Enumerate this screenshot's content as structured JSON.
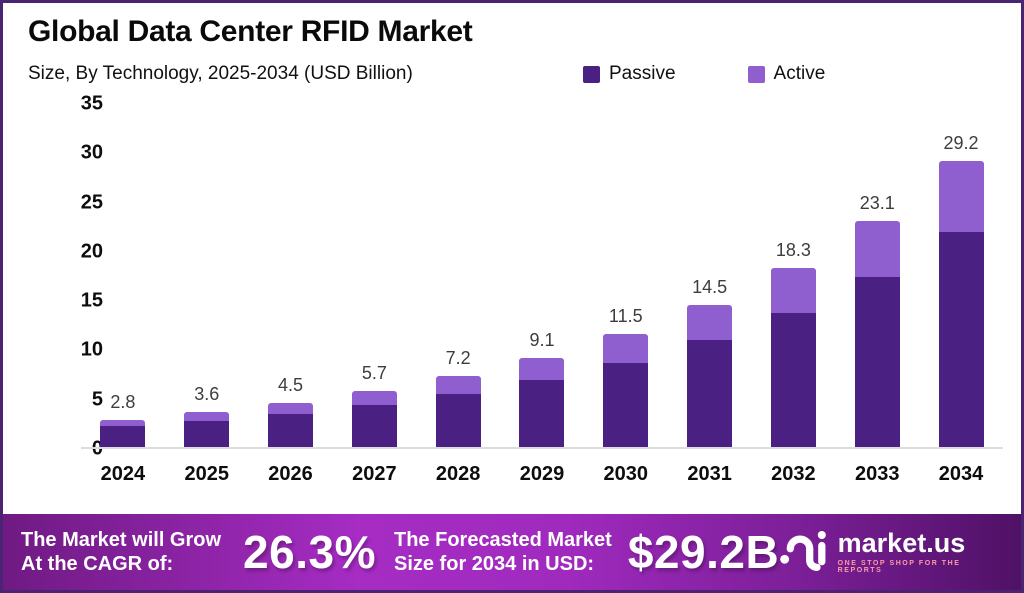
{
  "title": "Global Data Center RFID Market",
  "subtitle": "Size, By Technology, 2025-2034 (USD Billion)",
  "colors": {
    "passive": "#4a2083",
    "active": "#8f5fd0",
    "border": "#4b2373",
    "banner_text": "#ffffff"
  },
  "chart_data": {
    "type": "bar",
    "stacked": true,
    "title": "Global Data Center RFID Market",
    "subtitle": "Size, By Technology, 2025-2034 (USD Billion)",
    "unit": "USD Billion",
    "categories": [
      "2024",
      "2025",
      "2026",
      "2027",
      "2028",
      "2029",
      "2030",
      "2031",
      "2032",
      "2033",
      "2034"
    ],
    "series": [
      {
        "name": "Passive",
        "color": "#4a2083",
        "values": [
          2.1,
          2.7,
          3.4,
          4.3,
          5.4,
          6.8,
          8.6,
          10.9,
          13.7,
          17.3,
          21.9
        ]
      },
      {
        "name": "Active",
        "color": "#8f5fd0",
        "values": [
          0.7,
          0.9,
          1.1,
          1.4,
          1.8,
          2.3,
          2.9,
          3.6,
          4.6,
          5.8,
          7.3
        ]
      }
    ],
    "totals": [
      2.8,
      3.6,
      4.5,
      5.7,
      7.2,
      9.1,
      11.5,
      14.5,
      18.3,
      23.1,
      29.2
    ],
    "ylim": [
      0,
      35
    ],
    "ytick_step": 5,
    "grid": false,
    "legend_position": "top-right"
  },
  "banner": {
    "cagr_caption_line1": "The Market will Grow",
    "cagr_caption_line2": "At the CAGR of:",
    "cagr_value": "26.3%",
    "forecast_caption_line1": "The Forecasted Market",
    "forecast_caption_line2": "Size for 2034 in USD:",
    "forecast_value": "$29.2B",
    "logo_name": "market.us",
    "logo_tagline": "ONE STOP SHOP FOR THE REPORTS"
  }
}
